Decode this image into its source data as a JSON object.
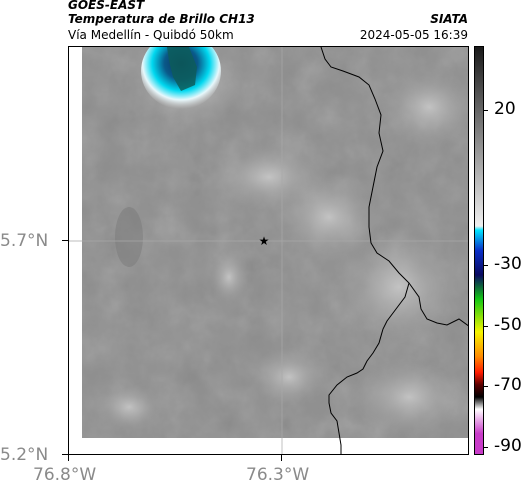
{
  "header": {
    "satellite": "GOES-EAST",
    "product": "Temperatura de Brillo CH13",
    "region": "Vía Medellín - Quibdó 50km",
    "agency": "SIATA",
    "datetime": "2024-05-05 16:39"
  },
  "map": {
    "lat_labels": [
      "5.7°N",
      "5.2°N"
    ],
    "lon_labels": [
      "76.8°W",
      "76.3°W"
    ],
    "marker": "star"
  },
  "colorbar": {
    "labels": [
      "20",
      "-30",
      "-50",
      "-70",
      "-90"
    ],
    "colors": {
      "gray_top": "#1a1a1a",
      "gray_bottom": "#f0f0f0",
      "cyan": "#00e5ff",
      "blue": "#0a2fc8",
      "navy": "#0a0a60",
      "green": "#14c814",
      "yellow": "#f5f500",
      "orange": "#ff8c00",
      "red": "#ff1a00",
      "dark_red": "#5a0000",
      "black": "#000000",
      "magenta": "#c83cc8"
    }
  }
}
